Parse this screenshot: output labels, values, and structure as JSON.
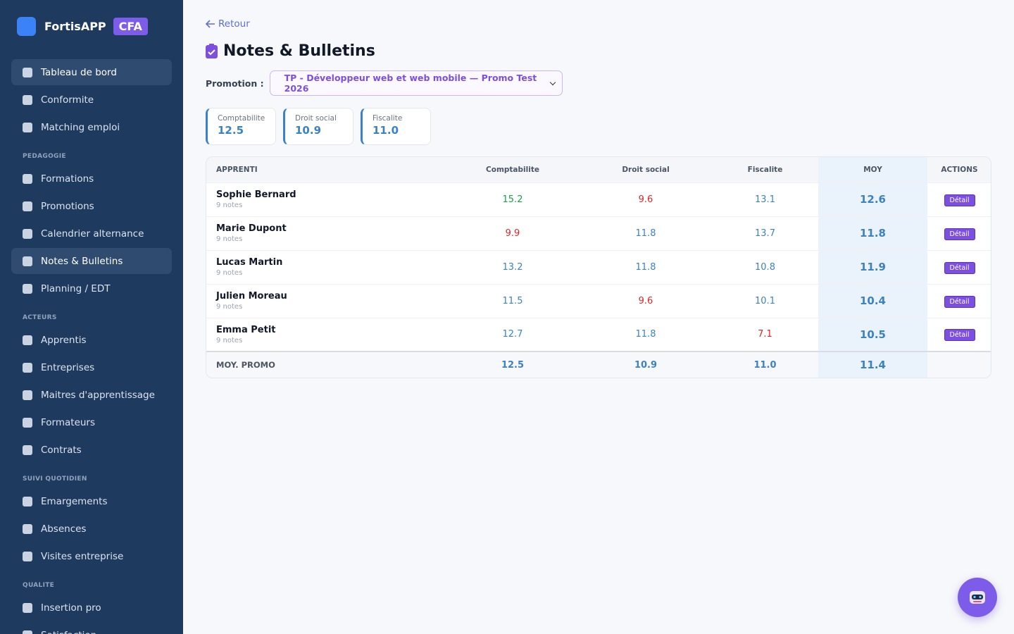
{
  "sidebar": {
    "brand": "FortisAPP",
    "badge": "CFA",
    "top_items": [
      {
        "label": "Tableau de bord",
        "active": true
      },
      {
        "label": "Conformite",
        "active": false
      },
      {
        "label": "Matching emploi",
        "active": false
      }
    ],
    "sections": [
      {
        "title": "PEDAGOGIE",
        "items": [
          {
            "label": "Formations",
            "active": false
          },
          {
            "label": "Promotions",
            "active": false
          },
          {
            "label": "Calendrier alternance",
            "active": false
          },
          {
            "label": "Notes & Bulletins",
            "active": true
          },
          {
            "label": "Planning / EDT",
            "active": false
          }
        ]
      },
      {
        "title": "ACTEURS",
        "items": [
          {
            "label": "Apprentis",
            "active": false
          },
          {
            "label": "Entreprises",
            "active": false
          },
          {
            "label": "Maitres d'apprentissage",
            "active": false
          },
          {
            "label": "Formateurs",
            "active": false
          },
          {
            "label": "Contrats",
            "active": false
          }
        ]
      },
      {
        "title": "SUIVI QUOTIDIEN",
        "items": [
          {
            "label": "Emargements",
            "active": false
          },
          {
            "label": "Absences",
            "active": false
          },
          {
            "label": "Visites entreprise",
            "active": false
          }
        ]
      },
      {
        "title": "QUALITE",
        "items": [
          {
            "label": "Insertion pro",
            "active": false
          },
          {
            "label": "Satisfaction",
            "active": false
          }
        ]
      }
    ]
  },
  "header": {
    "back": "Retour",
    "title": "Notes & Bulletins",
    "promotion_label": "Promotion :",
    "promotion": "TP - Développeur web et web mobile — Promo Test 2026"
  },
  "stats": [
    {
      "label": "Comptabilite",
      "value": "12.5"
    },
    {
      "label": "Droit social",
      "value": "10.9"
    },
    {
      "label": "Fiscalite",
      "value": "11.0"
    }
  ],
  "table": {
    "headers": [
      "APPRENTI",
      "Comptabilite",
      "Droit social",
      "Fiscalite",
      "MOY",
      "ACTIONS"
    ],
    "rows": [
      {
        "name": "Sophie Bernard",
        "notes": "9 notes",
        "grades": [
          "15.2",
          "9.6",
          "13.1"
        ],
        "colors": [
          "#16a34a",
          "#dc2626",
          "#3b82c4"
        ],
        "moy": "12.6",
        "action": "Détail"
      },
      {
        "name": "Marie Dupont",
        "notes": "9 notes",
        "grades": [
          "9.9",
          "11.8",
          "13.7"
        ],
        "colors": [
          "#dc2626",
          "#3b82c4",
          "#3b82c4"
        ],
        "moy": "11.8",
        "action": "Détail"
      },
      {
        "name": "Lucas Martin",
        "notes": "9 notes",
        "grades": [
          "13.2",
          "11.8",
          "10.8"
        ],
        "colors": [
          "#3b82c4",
          "#3b82c4",
          "#3b82c4"
        ],
        "moy": "11.9",
        "action": "Détail"
      },
      {
        "name": "Julien Moreau",
        "notes": "9 notes",
        "grades": [
          "11.5",
          "9.6",
          "10.1"
        ],
        "colors": [
          "#3b82c4",
          "#dc2626",
          "#3b82c4"
        ],
        "moy": "10.4",
        "action": "Détail"
      },
      {
        "name": "Emma Petit",
        "notes": "9 notes",
        "grades": [
          "12.7",
          "11.8",
          "7.1"
        ],
        "colors": [
          "#3b82c4",
          "#3b82c4",
          "#dc2626"
        ],
        "moy": "10.5",
        "action": "Détail"
      }
    ],
    "footer": {
      "label": "MOY. PROMO",
      "values": [
        "12.5",
        "10.9",
        "11.0"
      ],
      "moy": "11.4"
    }
  }
}
